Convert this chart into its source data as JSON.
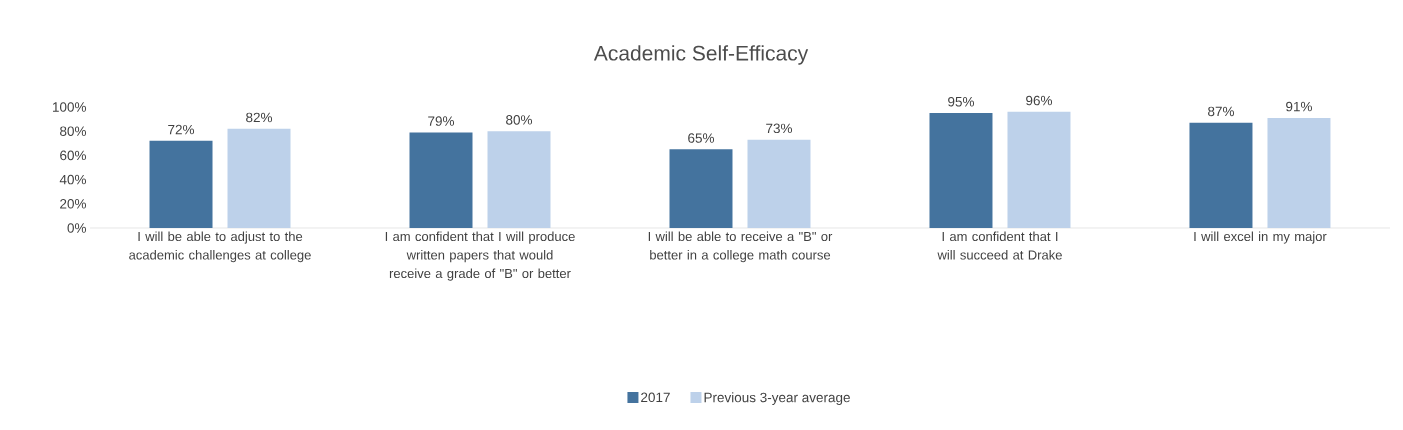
{
  "chart_data": {
    "type": "bar",
    "title": "Academic Self-Efficacy",
    "categories": [
      "I will be able to adjust to the academic challenges at college",
      "I am confident that I will produce written papers that would receive a grade of \"B\" or better",
      "I will be able to receive a \"B\" or better in a college math course",
      "I am confident that I will succeed at Drake",
      "I will excel in my major"
    ],
    "series": [
      {
        "name": "2017",
        "color": "#44739e",
        "values": [
          72,
          79,
          65,
          95,
          87
        ],
        "value_labels": [
          "72%",
          "79%",
          "65%",
          "95%",
          "87%"
        ]
      },
      {
        "name": "Previous 3-year average",
        "color": "#bdd1ea",
        "values": [
          82,
          80,
          73,
          96,
          91
        ],
        "value_labels": [
          "82%",
          "80%",
          "73%",
          "96%",
          "91%"
        ]
      }
    ],
    "ylim": [
      0,
      100
    ],
    "yticks": [
      {
        "value": 0,
        "label": "0%"
      },
      {
        "value": 20,
        "label": "20%"
      },
      {
        "value": 40,
        "label": "40%"
      },
      {
        "value": 60,
        "label": "60%"
      },
      {
        "value": 80,
        "label": "80%"
      },
      {
        "value": 100,
        "label": "100%"
      }
    ],
    "grid": false,
    "legend": "bottom"
  }
}
